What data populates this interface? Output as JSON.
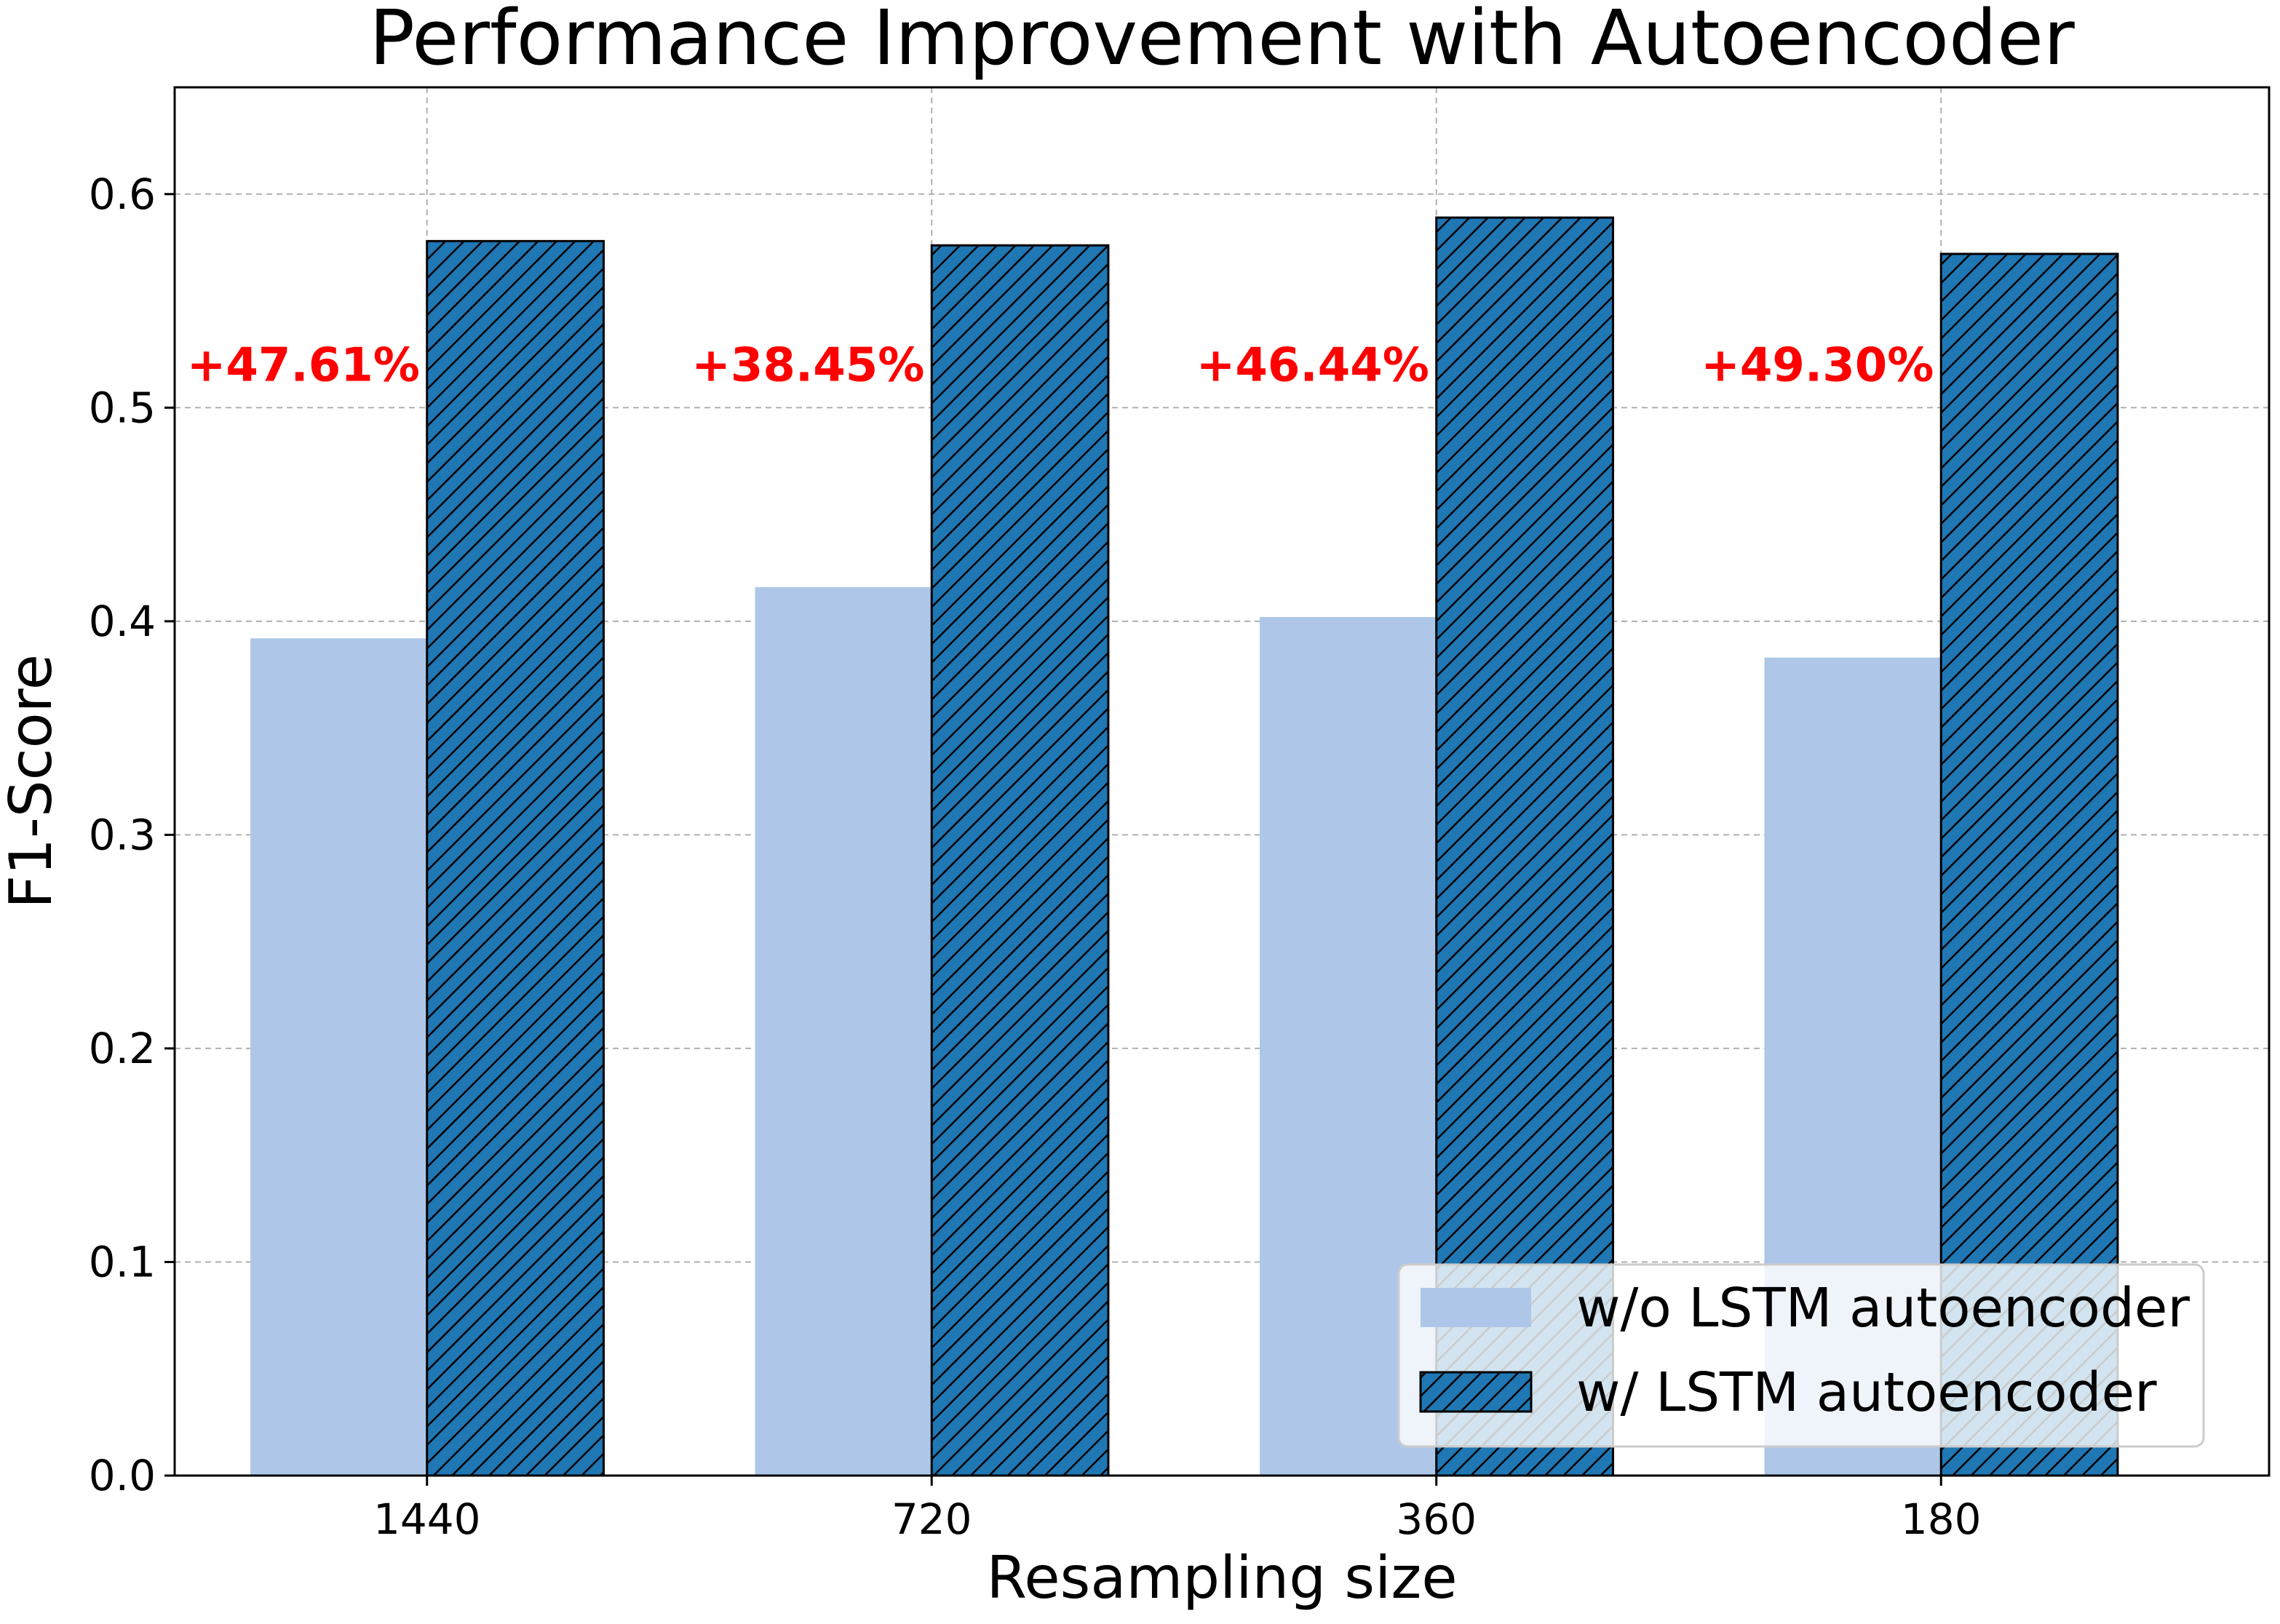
{
  "chart_data": {
    "type": "bar",
    "title": "Performance Improvement with Autoencoder",
    "xlabel": "Resampling size",
    "ylabel": "F1-Score",
    "categories": [
      "1440",
      "720",
      "360",
      "180"
    ],
    "ylim": [
      0,
      0.65
    ],
    "yticks": [
      "0.0",
      "0.1",
      "0.2",
      "0.3",
      "0.4",
      "0.5",
      "0.6"
    ],
    "grid": true,
    "series": [
      {
        "name": "w/o LSTM autoencoder",
        "values": [
          0.392,
          0.416,
          0.402,
          0.383
        ],
        "color": "#aec7e8",
        "hatch": false
      },
      {
        "name": "w/ LSTM autoencoder",
        "values": [
          0.578,
          0.576,
          0.589,
          0.572
        ],
        "color": "#1f77b4",
        "hatch": true
      }
    ],
    "annotations": [
      "+47.61%",
      "+38.45%",
      "+46.44%",
      "+49.30%"
    ],
    "annotation_value": 0.52,
    "annotation_color": "#ff0000",
    "legend_position": "lower-right"
  }
}
